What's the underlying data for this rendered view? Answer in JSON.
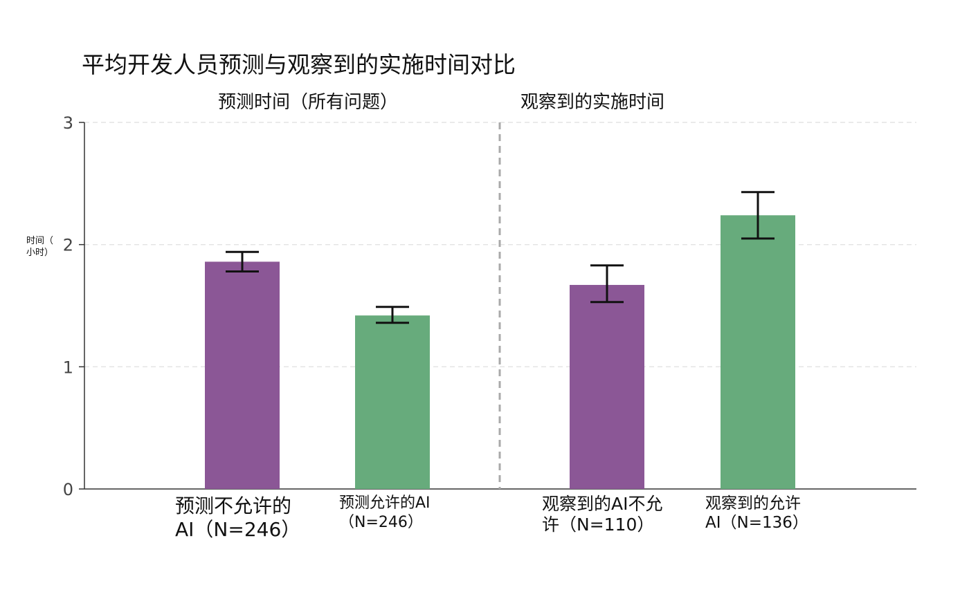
{
  "chart_data": {
    "type": "bar",
    "title": "平均开发人员预测与观察到的实施时间对比",
    "section_titles": [
      "预测时间（所有问题）",
      "观察到的实施时间"
    ],
    "ylabel": "时间（小时）",
    "ylabel_lines": [
      "时间（",
      "小时）"
    ],
    "ylim": [
      0,
      3
    ],
    "yticks": [
      0,
      1,
      2,
      3
    ],
    "grid": true,
    "categories": [
      [
        "预测不允许的",
        "AI（N=246）"
      ],
      [
        "预测允许的AI",
        "（N=246）"
      ],
      [
        "观察到的AI不允",
        "许（N=110）"
      ],
      [
        "观察到的允许",
        "AI（N=136）"
      ]
    ],
    "values": [
      1.86,
      1.42,
      1.67,
      2.24
    ],
    "error_low": [
      1.78,
      1.36,
      1.53,
      2.05
    ],
    "error_high": [
      1.94,
      1.49,
      1.83,
      2.43
    ],
    "colors": [
      "#8B5796",
      "#67AB7C",
      "#8B5796",
      "#67AB7C"
    ],
    "divider_color": "#A9A9A9"
  }
}
